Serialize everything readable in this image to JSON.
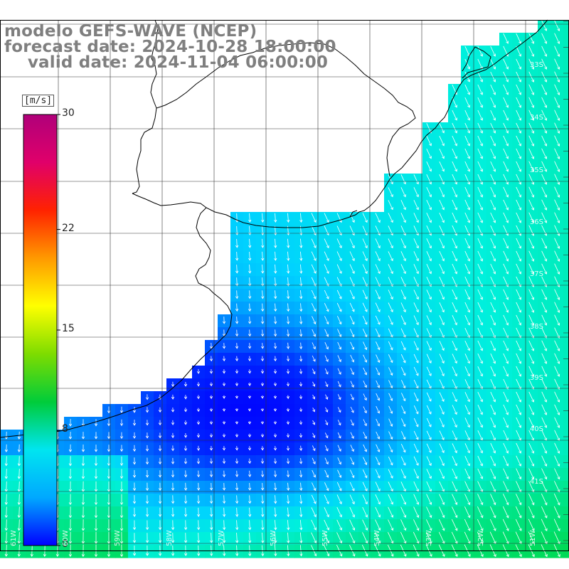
{
  "title": {
    "line1": "modelo GEFS-WAVE (NCEP)",
    "line2": "forecast date: 2024-10-28 18:00:00",
    "line3": "    valid date: 2024-11-04 06:00:00"
  },
  "colorbar": {
    "unit": "[m/s]",
    "ticks": [
      "30",
      "22",
      "15",
      "8",
      "0"
    ],
    "tick_values": [
      30,
      22,
      15,
      8,
      0
    ],
    "range": [
      0,
      30
    ],
    "colors": [
      "#0000ff",
      "#00a8ff",
      "#00e5f0",
      "#00cc3a",
      "#7ddc00",
      "#ffff00",
      "#ff9900",
      "#ff2200",
      "#e0006a",
      "#b0007a"
    ]
  },
  "lat_labels": [
    "33S",
    "34S",
    "35S",
    "36S",
    "37S",
    "38S",
    "39S",
    "40S",
    "41S"
  ],
  "lon_labels": [
    "61W",
    "60W",
    "59W",
    "58W",
    "57W",
    "56W",
    "55W",
    "54W",
    "53W",
    "52W",
    "51W"
  ],
  "map": {
    "projection": "lat-lon",
    "region": "Rio de la Plata / Uruguay coast",
    "land_color": "#ffffff",
    "coastline_color": "#000000",
    "grid_color": "#000000",
    "wind_arrow_color": "#ffffff"
  }
}
